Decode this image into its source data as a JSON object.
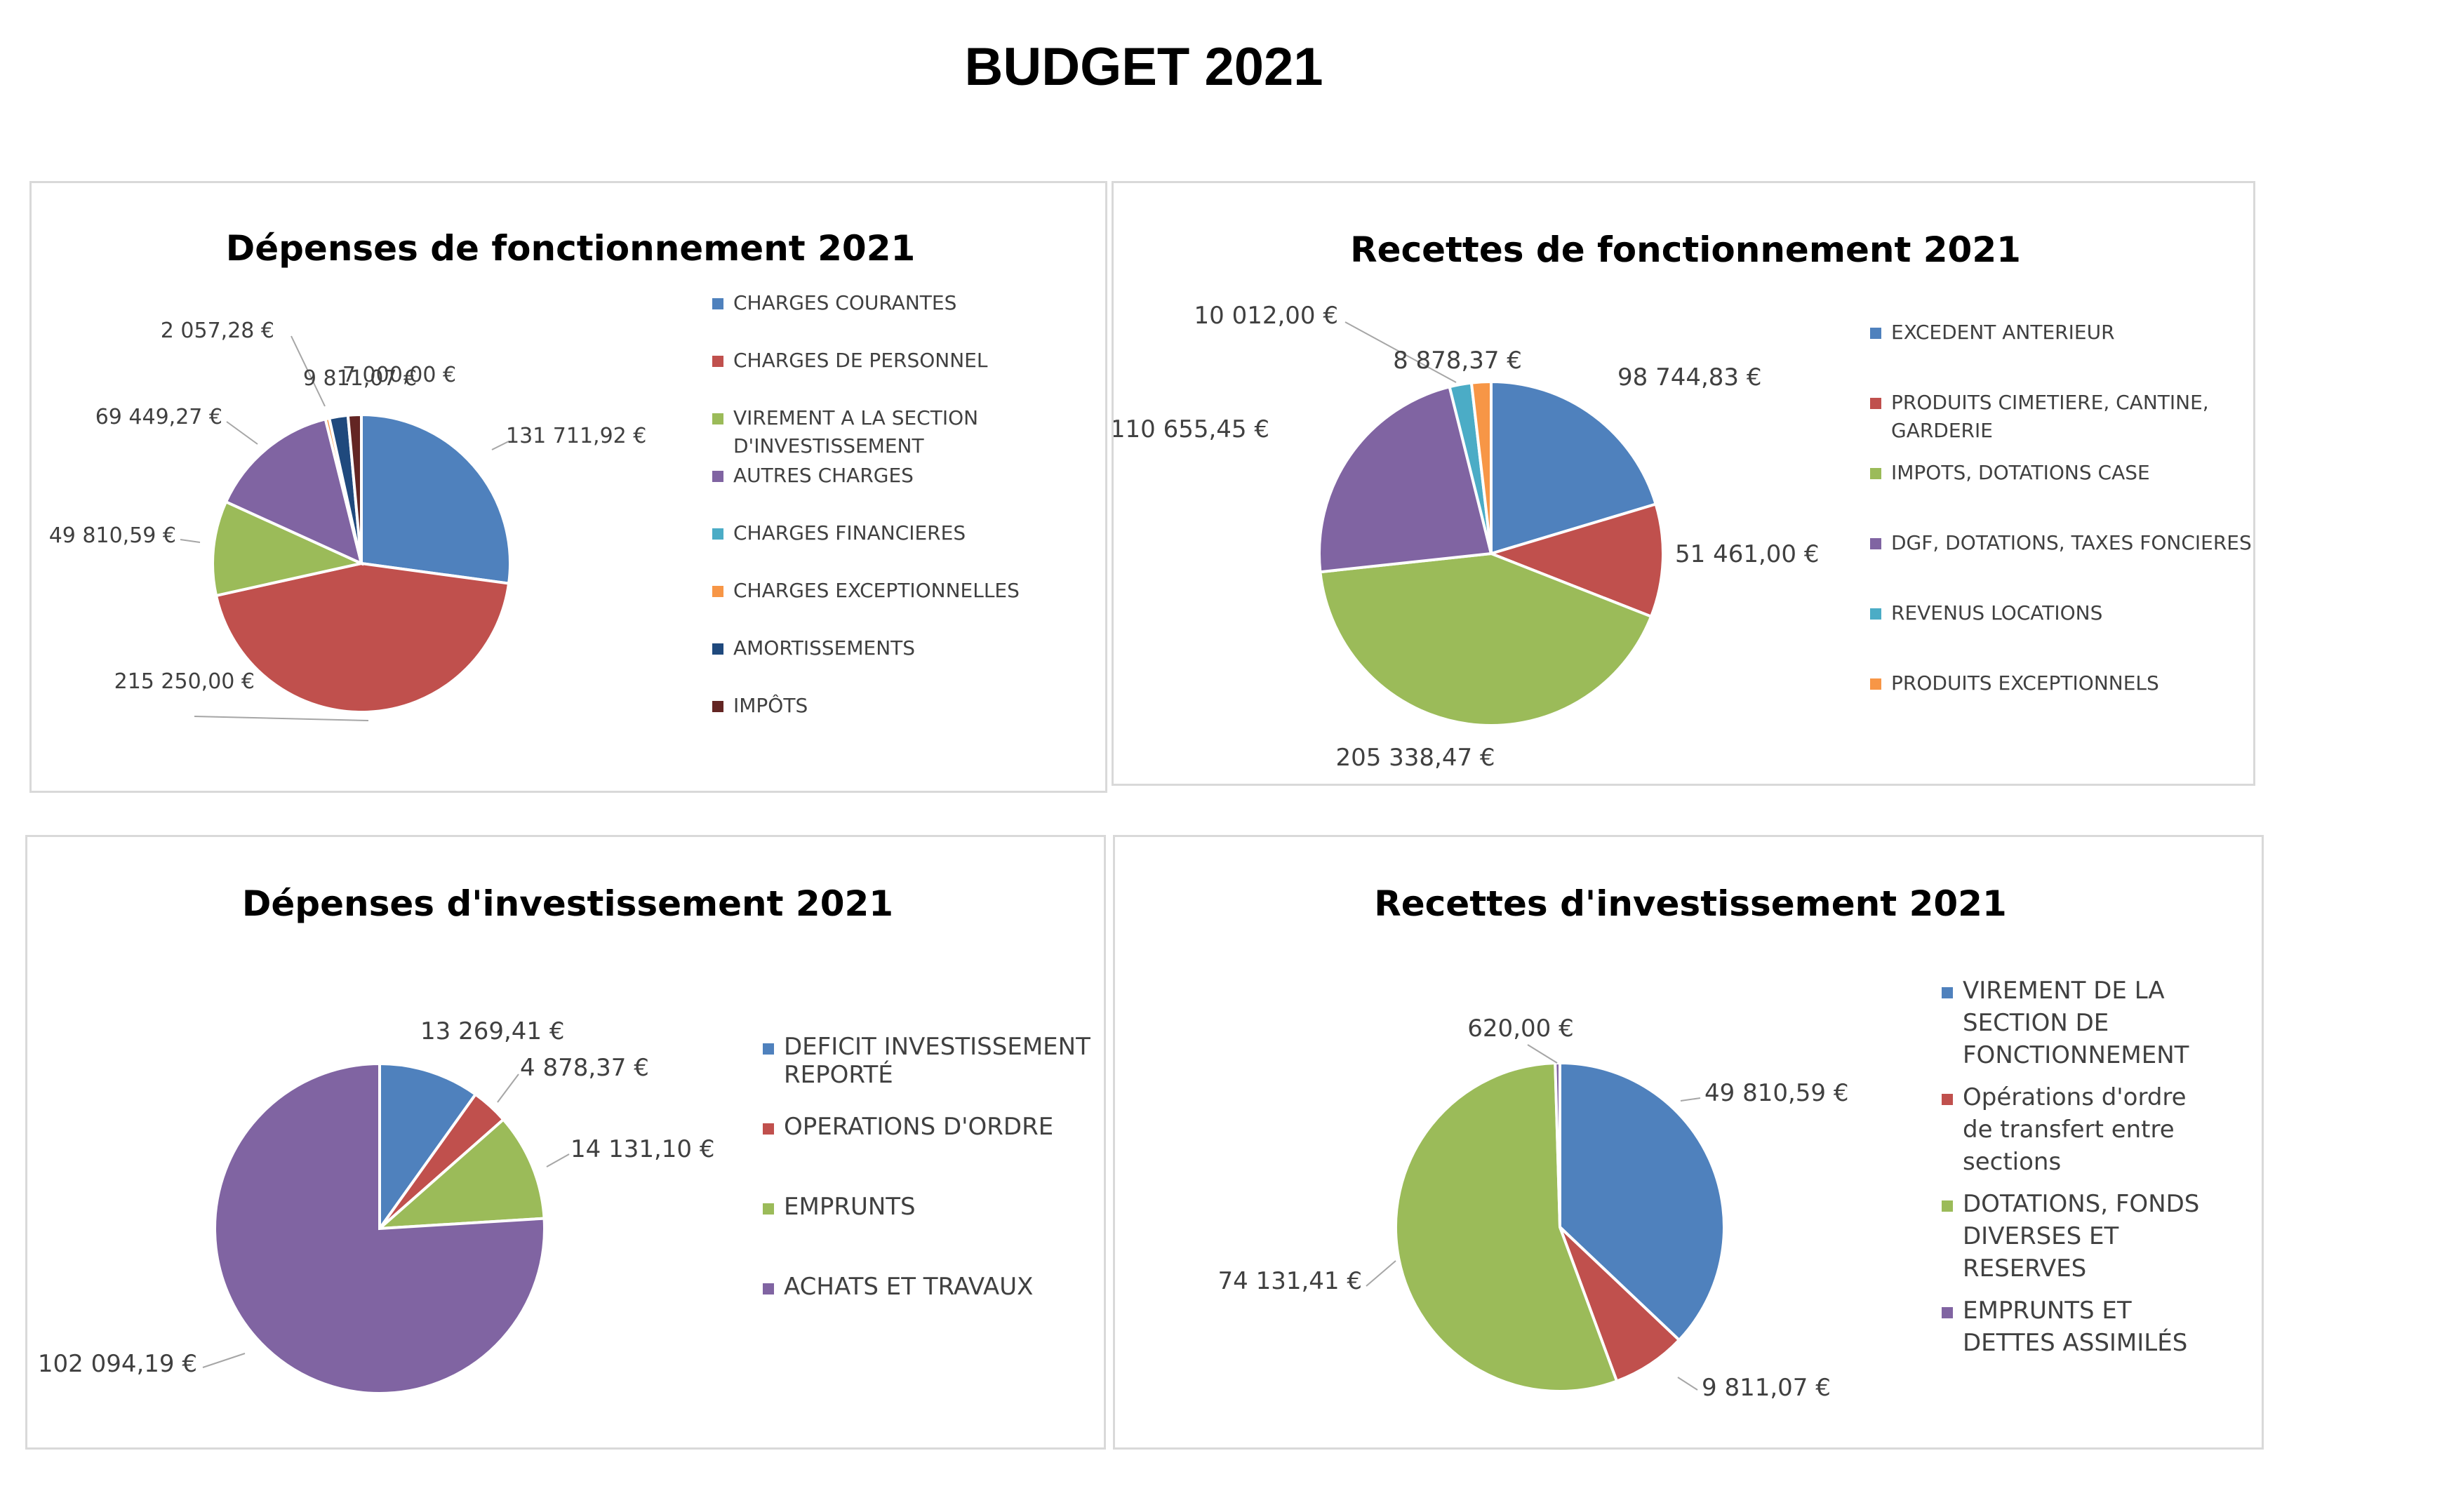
{
  "page_title": "BUDGET 2021",
  "chart_data": [
    {
      "type": "pie",
      "title": "Dépenses de fonctionnement 2021",
      "categories": [
        "CHARGES COURANTES",
        "CHARGES DE PERSONNEL",
        "VIREMENT A LA SECTION D'INVESTISSEMENT",
        "AUTRES CHARGES",
        "CHARGES FINANCIERES",
        "CHARGES EXCEPTIONNELLES",
        "AMORTISSEMENTS",
        "IMPÔTS"
      ],
      "legend_lines": [
        [
          "CHARGES COURANTES"
        ],
        [
          "CHARGES DE PERSONNEL"
        ],
        [
          "VIREMENT A LA SECTION",
          "D'INVESTISSEMENT"
        ],
        [
          "AUTRES CHARGES"
        ],
        [
          "CHARGES FINANCIERES"
        ],
        [
          "CHARGES EXCEPTIONNELLES"
        ],
        [
          "AMORTISSEMENTS"
        ],
        [
          "IMPÔTS"
        ]
      ],
      "values": [
        131711.92,
        215250.0,
        49810.59,
        69449.27,
        0,
        2057.28,
        9811.07,
        7000.0
      ],
      "value_labels": [
        "131 711,92 €",
        "215 250,00 €",
        "49 810,59 €",
        "69 449,27 €",
        "",
        "2 057,28 €",
        "9 811,07 €",
        "7 000,00 €"
      ],
      "colors": [
        "#4f81bd",
        "#c0504d",
        "#9bbb59",
        "#8064a2",
        "#4bacc6",
        "#f79646",
        "#1f497d",
        "#632523"
      ],
      "legend_position": "right"
    },
    {
      "type": "pie",
      "title": "Recettes de fonctionnement 2021",
      "categories": [
        "EXCEDENT ANTERIEUR",
        "PRODUITS CIMETIERE, CANTINE, GARDERIE",
        "IMPOTS, DOTATIONS CASE",
        "DGF, DOTATIONS, TAXES FONCIERES",
        "REVENUS LOCATIONS",
        "PRODUITS EXCEPTIONNELS"
      ],
      "legend_lines": [
        [
          "EXCEDENT ANTERIEUR"
        ],
        [
          "PRODUITS CIMETIERE, CANTINE,",
          "GARDERIE"
        ],
        [
          "IMPOTS, DOTATIONS CASE"
        ],
        [
          "DGF, DOTATIONS, TAXES FONCIERES"
        ],
        [
          "REVENUS LOCATIONS"
        ],
        [
          "PRODUITS EXCEPTIONNELS"
        ]
      ],
      "values": [
        98744.83,
        51461.0,
        205338.47,
        110655.45,
        10012.0,
        8878.37
      ],
      "value_labels": [
        "98 744,83 €",
        "51 461,00 €",
        "205 338,47 €",
        "110 655,45 €",
        "10 012,00 €",
        "8 878,37 €"
      ],
      "colors": [
        "#4f81bd",
        "#c0504d",
        "#9bbb59",
        "#8064a2",
        "#4bacc6",
        "#f79646"
      ],
      "legend_position": "right"
    },
    {
      "type": "pie",
      "title": "Dépenses d'investissement 2021",
      "categories": [
        "DEFICIT INVESTISSEMENT REPORTÉ",
        "OPERATIONS D'ORDRE",
        "EMPRUNTS",
        "ACHATS ET TRAVAUX"
      ],
      "legend_lines": [
        [
          "DEFICIT INVESTISSEMENT",
          "REPORTÉ"
        ],
        [
          "OPERATIONS D'ORDRE"
        ],
        [
          "EMPRUNTS"
        ],
        [
          "ACHATS ET TRAVAUX"
        ]
      ],
      "values": [
        13269.41,
        4878.37,
        14131.1,
        102094.19
      ],
      "value_labels": [
        "13 269,41 €",
        "4 878,37 €",
        "14 131,10 €",
        "102 094,19 €"
      ],
      "colors": [
        "#4f81bd",
        "#c0504d",
        "#9bbb59",
        "#8064a2"
      ],
      "legend_position": "right"
    },
    {
      "type": "pie",
      "title": "Recettes d'investissement 2021",
      "categories": [
        "VIREMENT DE LA SECTION DE FONCTIONNEMENT",
        "Opérations d'ordre de transfert entre sections",
        "DOTATIONS, FONDS DIVERSES ET RESERVES",
        "EMPRUNTS ET DETTES ASSIMILÉS"
      ],
      "legend_lines": [
        [
          "VIREMENT DE LA",
          "SECTION DE",
          "FONCTIONNEMENT"
        ],
        [
          "Opérations d'ordre",
          "de transfert entre",
          "sections"
        ],
        [
          "DOTATIONS, FONDS",
          "DIVERSES ET",
          "RESERVES"
        ],
        [
          "EMPRUNTS ET",
          "DETTES ASSIMILÉS"
        ]
      ],
      "values": [
        49810.59,
        9811.07,
        74131.41,
        620.0
      ],
      "value_labels": [
        "49 810,59 €",
        "9 811,07 €",
        "74 131,41 €",
        "620,00 €"
      ],
      "colors": [
        "#4f81bd",
        "#c0504d",
        "#9bbb59",
        "#8064a2"
      ],
      "legend_position": "right"
    }
  ]
}
